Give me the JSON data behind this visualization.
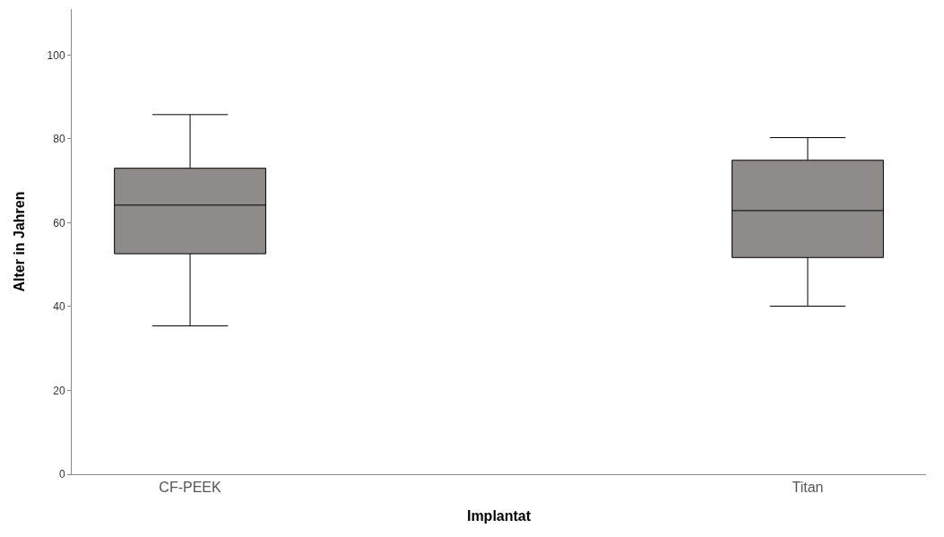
{
  "chart_data": {
    "type": "box",
    "xlabel": "Implantat",
    "ylabel": "Alter in Jahren",
    "categories": [
      "CF-PEEK",
      "Titan"
    ],
    "boxes": [
      {
        "low": 35.4,
        "q1": 52.6,
        "median": 64.2,
        "q3": 73,
        "high": 85.8
      },
      {
        "low": 40.1,
        "q1": 51.7,
        "median": 62.9,
        "q3": 74.9,
        "high": 80.3
      }
    ],
    "color": "#8f8b89",
    "ylim": [
      0,
      111
    ],
    "yticks": [
      0,
      20,
      40,
      60,
      80,
      100
    ],
    "grid": false
  }
}
